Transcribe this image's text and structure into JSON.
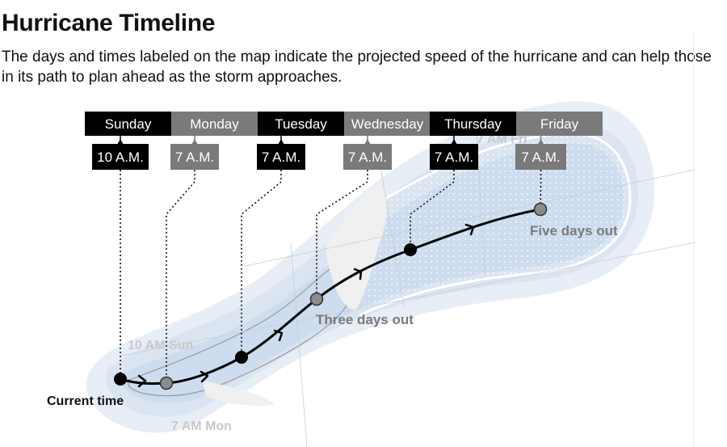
{
  "title": "Hurricane Timeline",
  "subtitle": "The days and times labeled on the map indicate the projected speed of the hurricane and can help those in its path to plan ahead as the storm approaches.",
  "timeline": [
    {
      "day": "Sunday",
      "time": "10 A.M.",
      "color": "#000000"
    },
    {
      "day": "Monday",
      "time": "7 A.M.",
      "color": "#7a7a7a"
    },
    {
      "day": "Tuesday",
      "time": "7 A.M.",
      "color": "#000000"
    },
    {
      "day": "Wednesday",
      "time": "7 A.M.",
      "color": "#7a7a7a"
    },
    {
      "day": "Thursday",
      "time": "7 A.M.",
      "color": "#000000"
    },
    {
      "day": "Friday",
      "time": "7 A.M.",
      "color": "#7a7a7a"
    }
  ],
  "annotations": {
    "current": "Current time",
    "three_days": "Three days out",
    "five_days": "Five days out"
  },
  "background_labels": {
    "sun": "10 AM Sun",
    "mon": "7 AM Mon",
    "fri": "7 AM Fri"
  },
  "colors": {
    "cone_outer": "#e8eef6",
    "cone_mid": "#dbe5f1",
    "cone_inner": "#cddcee",
    "land": "#f0f0f0",
    "track": "#000000",
    "point_gray": "#8c8c8c"
  }
}
